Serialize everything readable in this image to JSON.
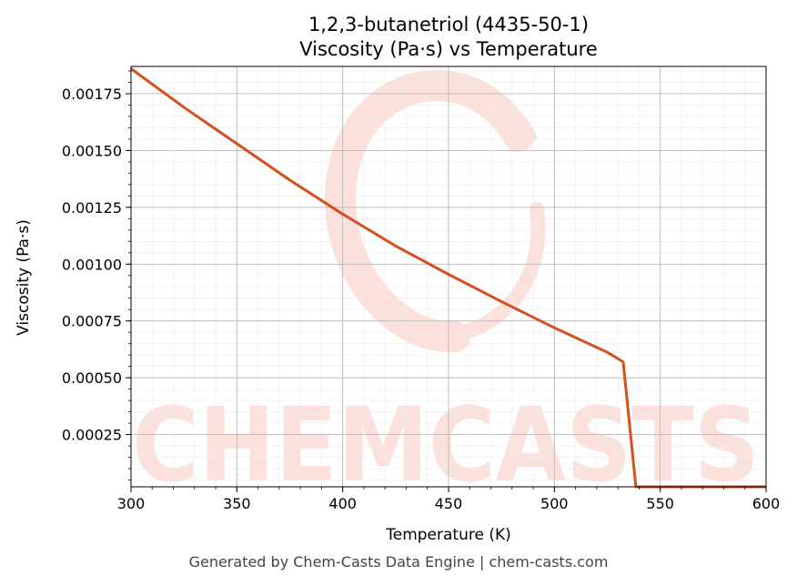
{
  "chart_data": {
    "type": "line",
    "title": "1,2,3-butanetriol (4435-50-1)",
    "subtitle": "Viscosity (Pa·s) vs Temperature",
    "xlabel": "Temperature (K)",
    "ylabel": "Viscosity (Pa·s)",
    "xlim": [
      300,
      600
    ],
    "ylim": [
      2e-05,
      0.00187
    ],
    "x_ticks": [
      300,
      350,
      400,
      450,
      500,
      550,
      600
    ],
    "y_ticks": [
      0.00025,
      0.0005,
      0.00075,
      0.001,
      0.00125,
      0.0015,
      0.00175
    ],
    "x_tick_labels": [
      "300",
      "350",
      "400",
      "450",
      "500",
      "550",
      "600"
    ],
    "y_tick_labels": [
      "0.00025",
      "0.00050",
      "0.00075",
      "0.00100",
      "0.00125",
      "0.00150",
      "0.00175"
    ],
    "grid": true,
    "series": [
      {
        "color": "#d4501e",
        "x": [
          300,
          325,
          350,
          375,
          400,
          425,
          450,
          475,
          500,
          525,
          532.5,
          538.5,
          550,
          575,
          600
        ],
        "y": [
          0.00186,
          0.00169,
          0.00153,
          0.00137,
          0.00122,
          0.00108,
          0.000955,
          0.000835,
          0.00072,
          0.000612,
          0.00057,
          2e-05,
          2e-05,
          2e-05,
          2e-05
        ]
      }
    ],
    "watermark": "CHEMCASTS"
  },
  "footer": "Generated by Chem-Casts Data Engine | chem-casts.com"
}
